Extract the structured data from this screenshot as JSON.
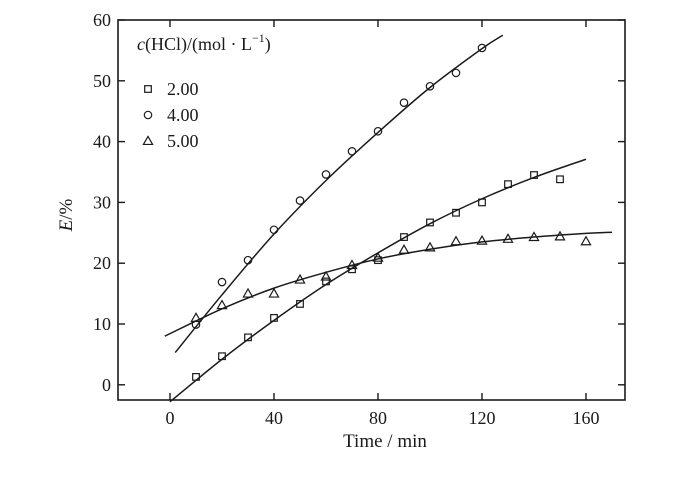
{
  "chart_data": {
    "type": "scatter",
    "xlabel": "Time / min",
    "ylabel": "E/%",
    "xlim": [
      -20,
      175
    ],
    "ylim": [
      -2.5,
      60
    ],
    "xticks": [
      0,
      40,
      80,
      120,
      160
    ],
    "yticks": [
      0,
      10,
      20,
      30,
      40,
      50,
      60
    ],
    "grid": false,
    "legend": {
      "title": "c(HCl)/(mol · L⁻¹)",
      "title_parts": {
        "var": "c",
        "open": "(HCl)/(mol · L",
        "sup": "−1",
        "close": ")"
      },
      "placement": "top-left"
    },
    "series": [
      {
        "name": "2.00",
        "marker": "square",
        "x": [
          10,
          20,
          30,
          40,
          50,
          60,
          70,
          80,
          90,
          100,
          110,
          120,
          130,
          140,
          150
        ],
        "y": [
          1.3,
          4.7,
          7.8,
          11.0,
          13.3,
          17.0,
          19.0,
          20.5,
          24.3,
          26.7,
          28.3,
          30.0,
          33.0,
          34.5,
          33.8
        ],
        "fit_x": [
          0,
          20,
          40,
          60,
          80,
          100,
          120,
          140,
          160
        ],
        "fit_y": [
          -2.8,
          4.2,
          10.6,
          16.5,
          21.7,
          26.5,
          30.6,
          34.1,
          37.1
        ]
      },
      {
        "name": "4.00",
        "marker": "circle",
        "x": [
          10,
          20,
          30,
          40,
          50,
          60,
          70,
          80,
          90,
          100,
          110,
          120
        ],
        "y": [
          9.9,
          16.9,
          20.5,
          25.5,
          30.3,
          34.6,
          38.4,
          41.7,
          46.4,
          49.1,
          51.3,
          55.4
        ],
        "fit_x": [
          2,
          20,
          40,
          60,
          80,
          100,
          120,
          128
        ],
        "fit_y": [
          5.3,
          14.8,
          24.8,
          33.6,
          41.5,
          48.9,
          55.3,
          57.5
        ]
      },
      {
        "name": "5.00",
        "marker": "triangle",
        "x": [
          10,
          20,
          30,
          40,
          50,
          60,
          70,
          80,
          90,
          100,
          110,
          120,
          130,
          140,
          150,
          160
        ],
        "y": [
          11.0,
          13.1,
          15.0,
          15.0,
          17.3,
          17.8,
          19.7,
          20.9,
          22.2,
          22.6,
          23.6,
          23.7,
          24.0,
          24.3,
          24.4,
          23.6
        ],
        "fit_x": [
          -2,
          20,
          40,
          60,
          80,
          100,
          120,
          140,
          160,
          170
        ],
        "fit_y": [
          8.0,
          12.5,
          15.9,
          18.5,
          20.7,
          22.3,
          23.5,
          24.3,
          24.9,
          25.1
        ]
      }
    ]
  }
}
